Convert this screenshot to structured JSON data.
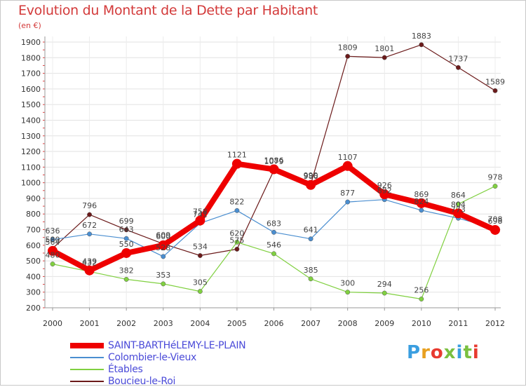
{
  "header": {
    "title": "Evolution du Montant de la Dette par Habitant",
    "unit": "(en €)"
  },
  "brand": {
    "text": "Proxiti",
    "colors": [
      "#3a9ee0",
      "#e8a020",
      "#e83a30",
      "#7ac040",
      "#3a9ee0",
      "#7ac040",
      "#e83a30"
    ]
  },
  "chart_data": {
    "type": "line",
    "title": "Evolution du Montant de la Dette par Habitant",
    "ylabel": "(en €)",
    "xlabel": "",
    "ylim": [
      200,
      1900
    ],
    "y_ticks": [
      200,
      300,
      400,
      500,
      600,
      700,
      800,
      900,
      1000,
      1100,
      1200,
      1300,
      1400,
      1500,
      1600,
      1700,
      1800,
      1900
    ],
    "categories": [
      "2000",
      "2001",
      "2002",
      "2003",
      "2004",
      "2005",
      "2006",
      "2007",
      "2008",
      "2009",
      "2010",
      "2011",
      "2012"
    ],
    "grid": true,
    "legend_position": "bottom-left",
    "series": [
      {
        "name": "SAINT-BARTHéLEMY-LE-PLAIN",
        "color": "#ee0000",
        "values": [
          564,
          439,
          550,
          600,
          758,
          1121,
          1086,
          986,
          1107,
          926,
          869,
          804,
          698
        ],
        "labels": [
          "564",
          "439",
          "550",
          "600",
          "758",
          "1121",
          "1086",
          "986",
          "1107",
          "926",
          "869",
          "804",
          "698"
        ]
      },
      {
        "name": "Colombier-le-Vieux",
        "color": "#4a8ed0",
        "values": [
          636,
          672,
          643,
          528,
          741,
          822,
          683,
          641,
          877,
          892,
          824,
          773,
          708
        ],
        "labels": [
          "636",
          "672",
          "643",
          "528",
          "741",
          "822",
          "683",
          "641",
          "877",
          "892",
          "824",
          "773",
          "708"
        ]
      },
      {
        "name": "Étables",
        "color": "#80d040",
        "values": [
          480,
          432,
          382,
          353,
          305,
          620,
          546,
          385,
          300,
          294,
          256,
          864,
          978
        ],
        "labels": [
          "480",
          "432",
          "382",
          "353",
          "305",
          "620",
          "546",
          "385",
          "300",
          "294",
          "256",
          "864",
          "978"
        ]
      },
      {
        "name": "Boucieu-le-Roi",
        "color": "#6b1a1a",
        "values": [
          580,
          796,
          699,
          609,
          534,
          575,
          1079,
          990,
          1809,
          1801,
          1883,
          1737,
          1589
        ],
        "labels": [
          "580",
          "796",
          "699",
          "609",
          "534",
          "575",
          "1079",
          "990",
          "1809",
          "1801",
          "1883",
          "1737",
          "1589"
        ]
      }
    ]
  }
}
